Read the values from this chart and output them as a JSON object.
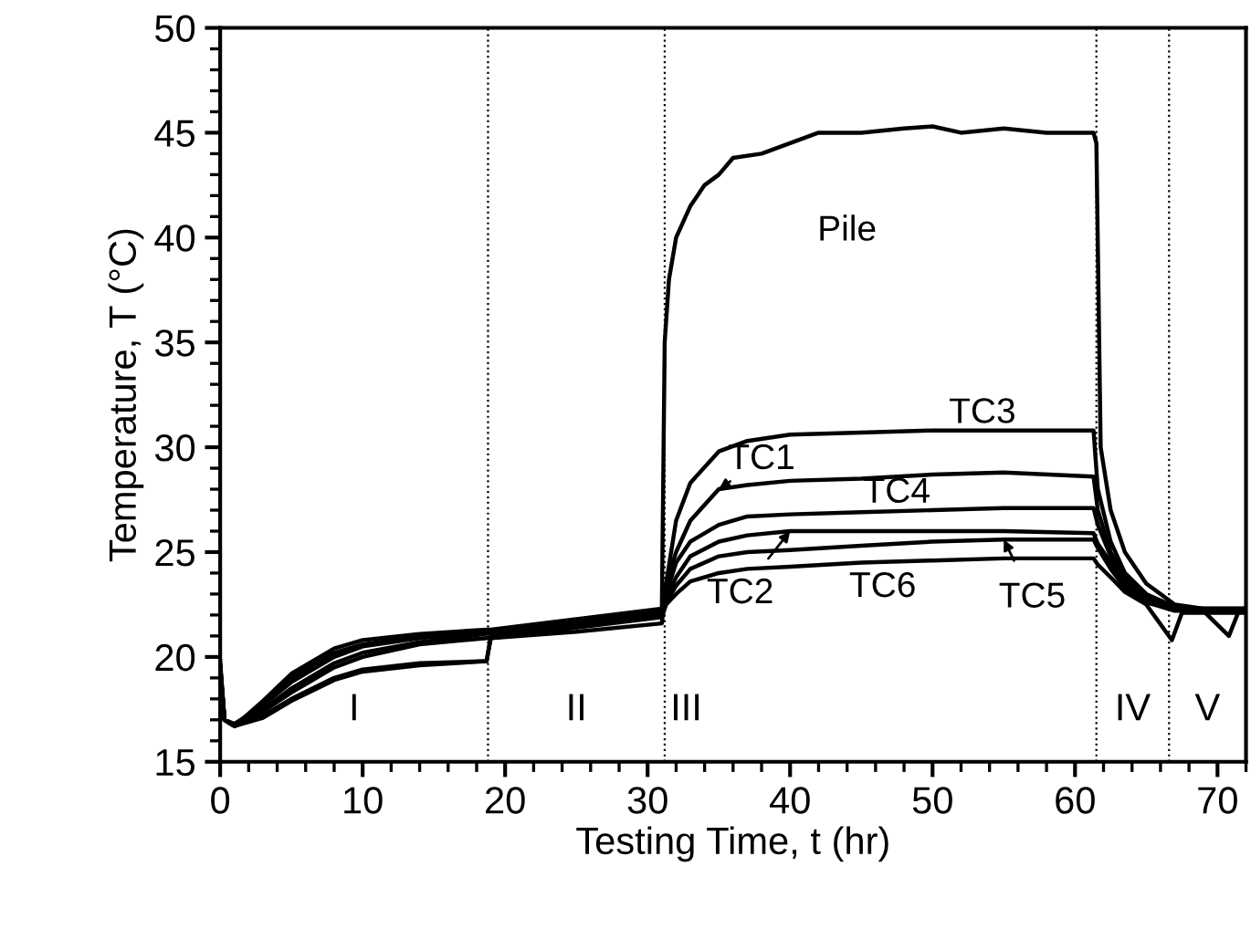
{
  "chart_data": {
    "type": "line",
    "xlabel": "Testing Time, t (hr)",
    "ylabel": "Temperature, T (°C)",
    "xlim": [
      0,
      72
    ],
    "xticks": [
      0,
      10,
      20,
      30,
      40,
      50,
      60,
      70
    ],
    "ylim": [
      15,
      50
    ],
    "yticks": [
      15,
      20,
      25,
      30,
      35,
      40,
      45,
      50
    ],
    "grid": false,
    "legend": false,
    "marker": "none",
    "line_style": "solid",
    "series": [
      {
        "name": "Pile",
        "color": "#000000",
        "x": [
          0,
          0.3,
          1,
          3,
          5,
          8,
          10,
          14,
          18.8,
          19,
          25,
          31,
          31.2,
          31.5,
          32,
          33,
          34,
          35,
          36,
          38,
          40,
          42,
          45,
          48,
          50,
          52,
          55,
          58,
          61.3,
          61.5,
          61.8,
          62.5,
          63.5,
          65,
          67,
          69,
          72
        ],
        "values": [
          19.8,
          17,
          16.7,
          17.8,
          19,
          20.2,
          20.6,
          21,
          21.2,
          21.2,
          21.7,
          22.2,
          35,
          38,
          40,
          41.5,
          42.5,
          43,
          43.8,
          44,
          44.5,
          45,
          45,
          45.2,
          45.3,
          45,
          45.2,
          45,
          45,
          44.5,
          30,
          27,
          25,
          23.5,
          22.5,
          22.3,
          22.3
        ]
      },
      {
        "color": "#000000",
        "x": [
          0,
          0.3,
          1,
          3,
          5,
          8,
          10,
          14,
          18.7,
          19,
          25,
          31,
          31.3,
          32,
          33,
          35,
          37,
          40,
          45,
          50,
          55,
          61.3,
          61.6,
          62.5,
          63.5,
          65,
          67,
          69,
          72
        ],
        "values": [
          19.6,
          17,
          16.7,
          17.4,
          18.3,
          19.5,
          20,
          20.6,
          20.9,
          20.9,
          21.2,
          21.6,
          23.5,
          26.5,
          28.3,
          29.8,
          30.3,
          30.6,
          30.7,
          30.8,
          30.8,
          30.8,
          28,
          25.5,
          24,
          23,
          22.4,
          22.3,
          22.3
        ]
      },
      {
        "color": "#000000",
        "x": [
          0,
          0.3,
          1,
          3,
          5,
          8,
          10,
          14,
          18.7,
          19,
          25,
          31,
          31.3,
          32,
          33,
          35,
          37,
          40,
          45,
          50,
          55,
          61.3,
          61.6,
          62.5,
          63.5,
          65,
          67,
          69,
          72
        ],
        "values": [
          19.6,
          17,
          16.7,
          17.9,
          19.2,
          20.4,
          20.8,
          21.1,
          21.3,
          21.3,
          21.8,
          22.3,
          23.5,
          25,
          26.5,
          28,
          28.2,
          28.4,
          28.5,
          28.7,
          28.8,
          28.6,
          27,
          25,
          23.8,
          22.8,
          22.3,
          22.2,
          22.3
        ]
      },
      {
        "color": "#000000",
        "x": [
          0,
          0.3,
          1,
          3,
          5,
          8,
          10,
          14,
          18.7,
          19,
          25,
          31,
          31.3,
          32,
          33,
          35,
          37,
          40,
          45,
          50,
          55,
          61.3,
          61.6,
          62.5,
          63.5,
          65,
          67,
          69,
          72
        ],
        "values": [
          19.5,
          17,
          16.8,
          17.7,
          18.8,
          20,
          20.5,
          20.9,
          21.2,
          21.2,
          21.7,
          22.2,
          23,
          24.5,
          25.5,
          26.3,
          26.7,
          26.8,
          26.9,
          27,
          27.1,
          27.1,
          26.3,
          24.8,
          23.7,
          22.8,
          22.3,
          22.3,
          22.3
        ]
      },
      {
        "color": "#000000",
        "x": [
          0,
          0.3,
          1,
          3,
          5,
          8,
          10,
          14,
          18.7,
          19,
          25,
          31,
          31.3,
          32,
          33,
          35,
          37,
          40,
          45,
          50,
          55,
          61.3,
          61.6,
          62.5,
          63.5,
          65,
          67,
          69,
          72
        ],
        "values": [
          19.4,
          17,
          16.8,
          17.5,
          18.5,
          19.7,
          20.2,
          20.7,
          21.1,
          21.1,
          21.6,
          22.1,
          22.8,
          23.8,
          24.8,
          25.5,
          25.8,
          26,
          26,
          26,
          26,
          25.9,
          25.4,
          24.5,
          23.5,
          22.7,
          22.3,
          22.2,
          22.3
        ]
      },
      {
        "color": "#000000",
        "x": [
          0,
          0.3,
          1,
          3,
          5,
          8,
          10,
          14,
          18.7,
          19,
          25,
          31,
          31.3,
          32,
          33,
          35,
          37,
          40,
          45,
          50,
          55,
          61.3,
          61.6,
          62.5,
          63.5,
          65,
          66.8,
          67.5,
          69,
          72
        ],
        "values": [
          19.4,
          17,
          16.7,
          17.1,
          17.9,
          18.9,
          19.3,
          19.6,
          19.8,
          20.9,
          21.4,
          21.9,
          22.5,
          23,
          23.6,
          24,
          24.2,
          24.3,
          24.5,
          24.6,
          24.7,
          24.7,
          24.4,
          23.8,
          23.1,
          22.5,
          20.8,
          22.1,
          22.1,
          22.1
        ]
      },
      {
        "color": "#000000",
        "x": [
          0,
          0.3,
          1,
          3,
          5,
          8,
          10,
          14,
          18.7,
          19,
          25,
          31,
          31.3,
          32,
          33,
          35,
          37,
          40,
          45,
          50,
          55,
          61.3,
          61.6,
          62.5,
          63.5,
          65,
          67,
          69,
          70.8,
          71.5,
          72
        ],
        "values": [
          19.4,
          17,
          16.7,
          17.2,
          18,
          19,
          19.4,
          19.7,
          19.8,
          21,
          21.5,
          22,
          22.6,
          23.4,
          24.2,
          24.8,
          25,
          25.1,
          25.3,
          25.5,
          25.6,
          25.6,
          25.2,
          24.2,
          23.3,
          22.6,
          22.2,
          22.2,
          21,
          22.2,
          22.2
        ]
      }
    ],
    "ref_lines": [
      {
        "axis": "x",
        "value": 18.8,
        "color": "#000000",
        "line_style": "dotted"
      },
      {
        "axis": "x",
        "value": 31.2,
        "color": "#000000",
        "line_style": "dotted"
      },
      {
        "axis": "x",
        "value": 61.5,
        "color": "#000000",
        "line_style": "dotted"
      },
      {
        "axis": "x",
        "value": 66.6,
        "color": "#000000",
        "line_style": "dotted"
      }
    ],
    "annotations": [
      "I",
      "II",
      "III",
      "IV",
      "V",
      {
        "text": "TC3",
        "x": 55,
        "y": 30.8
      },
      {
        "text": "TC1",
        "x": 35,
        "y": 28.0
      },
      {
        "text": "TC4",
        "x": 50,
        "y": 27.0
      },
      {
        "text": "TC2",
        "x": 40,
        "y": 26.0
      },
      {
        "text": "TC6",
        "x": 45,
        "y": 24.5
      },
      {
        "text": "TC5",
        "x": 55,
        "y": 25.6
      }
    ]
  }
}
